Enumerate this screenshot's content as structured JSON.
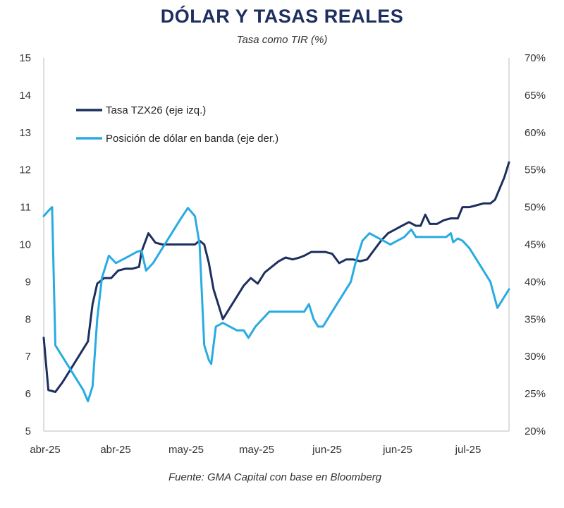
{
  "chart_data": {
    "type": "line",
    "title": "DÓLAR Y TASAS REALES",
    "subtitle": "Tasa como TIR (%)",
    "source": "Fuente: GMA Capital con base en Bloomberg",
    "x_tick_labels": [
      "abr-25",
      "abr-25",
      "may-25",
      "may-25",
      "jun-25",
      "jun-25",
      "jul-25"
    ],
    "y_left": {
      "min": 5,
      "max": 15,
      "ticks": [
        "5",
        "6",
        "7",
        "8",
        "9",
        "10",
        "11",
        "12",
        "13",
        "14",
        "15"
      ]
    },
    "y_right": {
      "min": 20,
      "max": 70,
      "ticks": [
        "20%",
        "25%",
        "30%",
        "35%",
        "40%",
        "45%",
        "50%",
        "55%",
        "60%",
        "65%",
        "70%"
      ]
    },
    "x_range": [
      0,
      100
    ],
    "colors": {
      "tasa": "#1d2f5e",
      "posicion": "#29abe2",
      "axis": "#bbbbbb"
    },
    "series": [
      {
        "name": "Tasa TZX26 (eje izq.)",
        "axis": "left",
        "points": [
          [
            0,
            7.5
          ],
          [
            1,
            6.1
          ],
          [
            2.5,
            6.05
          ],
          [
            4,
            6.3
          ],
          [
            5.5,
            6.6
          ],
          [
            7,
            6.9
          ],
          [
            8.5,
            7.2
          ],
          [
            9.5,
            7.4
          ],
          [
            10.5,
            8.4
          ],
          [
            11.5,
            8.95
          ],
          [
            13,
            9.1
          ],
          [
            14.5,
            9.1
          ],
          [
            16,
            9.3
          ],
          [
            17.5,
            9.35
          ],
          [
            19,
            9.35
          ],
          [
            20.5,
            9.4
          ],
          [
            21,
            9.8
          ],
          [
            22.5,
            10.3
          ],
          [
            24,
            10.05
          ],
          [
            25.5,
            10.0
          ],
          [
            27,
            10.0
          ],
          [
            29,
            10.0
          ],
          [
            31,
            10.0
          ],
          [
            32.5,
            10.0
          ],
          [
            33.5,
            10.1
          ],
          [
            34.5,
            10.0
          ],
          [
            35.5,
            9.5
          ],
          [
            36.5,
            8.8
          ],
          [
            37.5,
            8.4
          ],
          [
            38.5,
            8.0
          ],
          [
            40,
            8.3
          ],
          [
            41.5,
            8.6
          ],
          [
            43,
            8.9
          ],
          [
            44.5,
            9.1
          ],
          [
            46,
            8.95
          ],
          [
            47.5,
            9.25
          ],
          [
            49,
            9.4
          ],
          [
            50.5,
            9.55
          ],
          [
            52,
            9.65
          ],
          [
            53.5,
            9.6
          ],
          [
            55,
            9.65
          ],
          [
            56,
            9.7
          ],
          [
            57.5,
            9.8
          ],
          [
            59,
            9.8
          ],
          [
            60.5,
            9.8
          ],
          [
            62,
            9.75
          ],
          [
            63.5,
            9.5
          ],
          [
            65,
            9.6
          ],
          [
            66.5,
            9.6
          ],
          [
            68,
            9.55
          ],
          [
            69.5,
            9.6
          ],
          [
            71,
            9.85
          ],
          [
            72.5,
            10.1
          ],
          [
            74,
            10.3
          ],
          [
            75.5,
            10.4
          ],
          [
            77,
            10.5
          ],
          [
            78.5,
            10.6
          ],
          [
            80,
            10.5
          ],
          [
            81,
            10.5
          ],
          [
            82,
            10.8
          ],
          [
            83,
            10.55
          ],
          [
            84.5,
            10.55
          ],
          [
            86,
            10.65
          ],
          [
            87.5,
            10.7
          ],
          [
            89,
            10.7
          ],
          [
            90,
            11.0
          ],
          [
            91.5,
            11.0
          ],
          [
            93,
            11.05
          ],
          [
            94.5,
            11.1
          ],
          [
            96,
            11.1
          ],
          [
            97,
            11.2
          ],
          [
            98,
            11.5
          ],
          [
            99,
            11.8
          ],
          [
            100,
            12.2
          ]
        ]
      },
      {
        "name": "Posición de dólar en banda (eje der.)",
        "axis": "right",
        "points": [
          [
            0,
            48.8
          ],
          [
            1,
            49.5
          ],
          [
            1.8,
            50.0
          ],
          [
            2.5,
            31.5
          ],
          [
            4,
            30
          ],
          [
            5.5,
            28.5
          ],
          [
            7,
            27
          ],
          [
            8.5,
            25.5
          ],
          [
            9.5,
            24
          ],
          [
            10.5,
            26
          ],
          [
            11.5,
            35
          ],
          [
            12.5,
            40.5
          ],
          [
            14,
            43.5
          ],
          [
            15.5,
            42.5
          ],
          [
            17,
            43
          ],
          [
            18.5,
            43.5
          ],
          [
            20,
            44
          ],
          [
            21,
            44.2
          ],
          [
            22,
            41.5
          ],
          [
            23.5,
            42.5
          ],
          [
            25,
            44
          ],
          [
            26.5,
            45.5
          ],
          [
            28,
            47
          ],
          [
            29.5,
            48.5
          ],
          [
            31,
            49.9
          ],
          [
            32.5,
            48.8
          ],
          [
            33.5,
            45
          ],
          [
            34.5,
            31.5
          ],
          [
            35.5,
            29.5
          ],
          [
            36,
            29
          ],
          [
            37,
            34
          ],
          [
            38.5,
            34.5
          ],
          [
            40,
            34
          ],
          [
            41.5,
            33.5
          ],
          [
            43,
            33.5
          ],
          [
            44,
            32.5
          ],
          [
            45.5,
            34
          ],
          [
            47,
            35
          ],
          [
            48.5,
            36
          ],
          [
            50,
            36
          ],
          [
            51.5,
            36
          ],
          [
            53,
            36
          ],
          [
            54.5,
            36
          ],
          [
            56,
            36
          ],
          [
            57,
            37
          ],
          [
            58,
            35
          ],
          [
            59,
            34
          ],
          [
            60,
            34
          ],
          [
            61.5,
            35.5
          ],
          [
            63,
            37
          ],
          [
            64.5,
            38.5
          ],
          [
            66,
            40
          ],
          [
            67,
            42.5
          ],
          [
            68.5,
            45.5
          ],
          [
            70,
            46.5
          ],
          [
            71.5,
            46
          ],
          [
            73,
            45.5
          ],
          [
            74.5,
            45
          ],
          [
            76,
            45.5
          ],
          [
            77.5,
            46
          ],
          [
            79,
            47
          ],
          [
            80,
            46
          ],
          [
            81.5,
            46
          ],
          [
            83,
            46
          ],
          [
            84.5,
            46
          ],
          [
            85.5,
            46
          ],
          [
            86.5,
            46
          ],
          [
            87.5,
            46.5
          ],
          [
            88,
            45.3
          ],
          [
            89,
            45.8
          ],
          [
            90,
            45.5
          ],
          [
            91.5,
            44.5
          ],
          [
            93,
            43
          ],
          [
            94.5,
            41.5
          ],
          [
            96,
            40
          ],
          [
            97.5,
            36.5
          ],
          [
            98.5,
            37.5
          ],
          [
            100,
            39
          ]
        ]
      }
    ],
    "legend": [
      "Tasa TZX26 (eje izq.)",
      "Posición de dólar en banda (eje der.)"
    ]
  }
}
